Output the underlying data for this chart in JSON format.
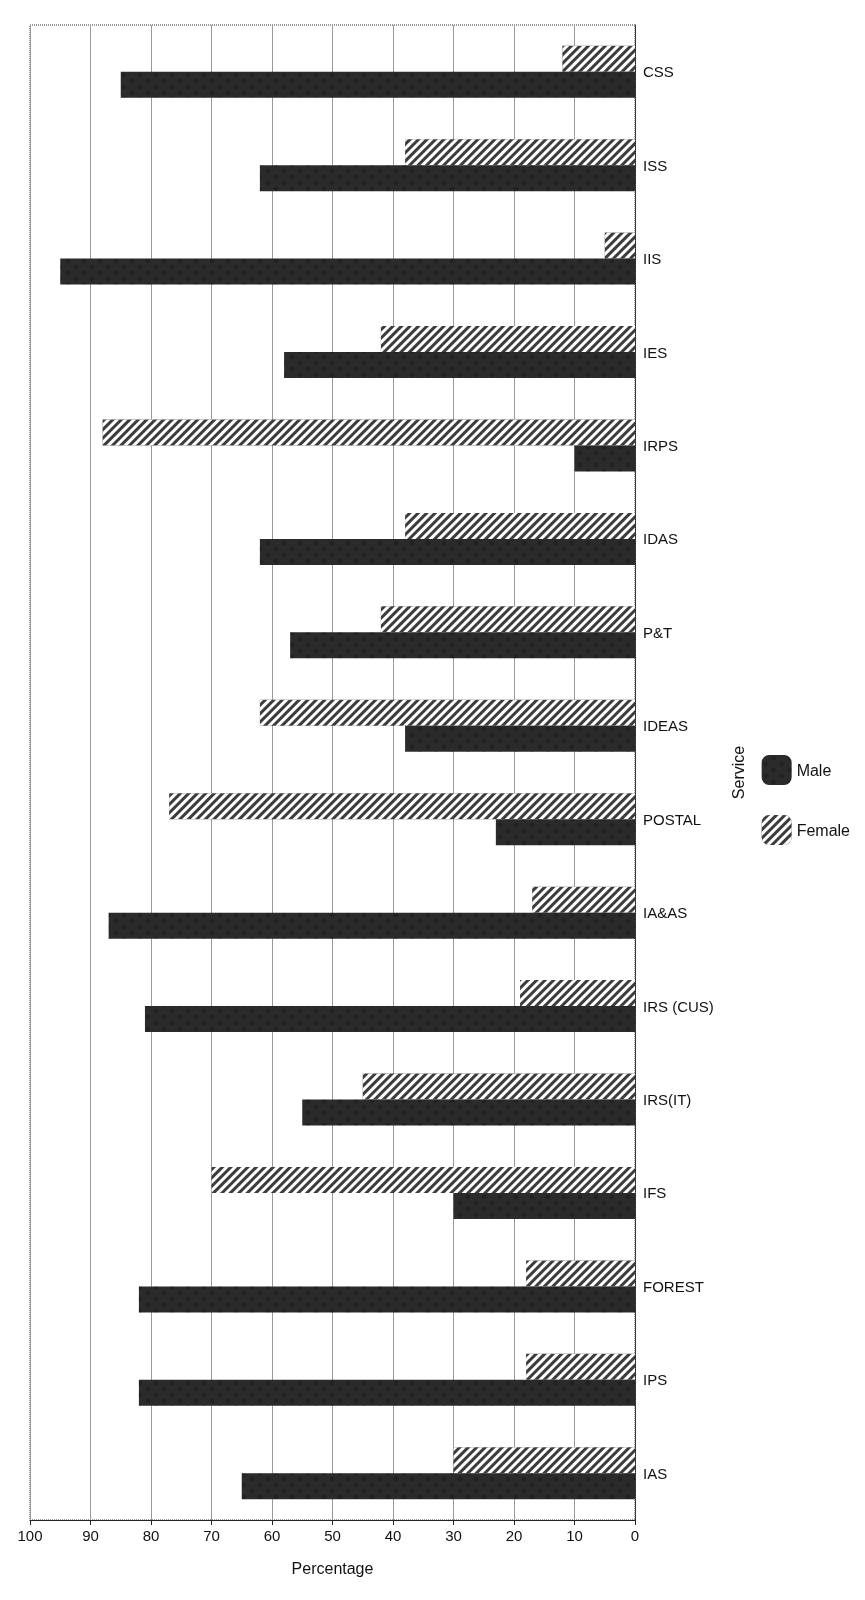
{
  "chart_data": {
    "type": "bar",
    "orientation": "horizontal",
    "xlabel": "Percentage",
    "ylabel": "Service",
    "categories": [
      "CSS",
      "ISS",
      "IIS",
      "IES",
      "IRPS",
      "IDAS",
      "P&T",
      "IDEAS",
      "POSTAL",
      "IA&AS",
      "IRS (CUS)",
      "IRS(IT)",
      "IFS",
      "FOREST",
      "IPS",
      "IAS"
    ],
    "series": [
      {
        "name": "Male",
        "color": "#2b2b2b",
        "values": [
          85,
          62,
          95,
          58,
          10,
          62,
          57,
          38,
          23,
          87,
          81,
          55,
          30,
          82,
          82,
          65
        ]
      },
      {
        "name": "Female",
        "color": "#3c3c3c",
        "values": [
          12,
          38,
          5,
          42,
          88,
          38,
          42,
          62,
          77,
          17,
          19,
          45,
          70,
          18,
          18,
          30
        ]
      }
    ],
    "xlim": [
      100,
      0
    ],
    "xticks": [
      100,
      90,
      80,
      70,
      60,
      50,
      40,
      30,
      20,
      10,
      0
    ],
    "grid": "x",
    "legend": "right"
  }
}
